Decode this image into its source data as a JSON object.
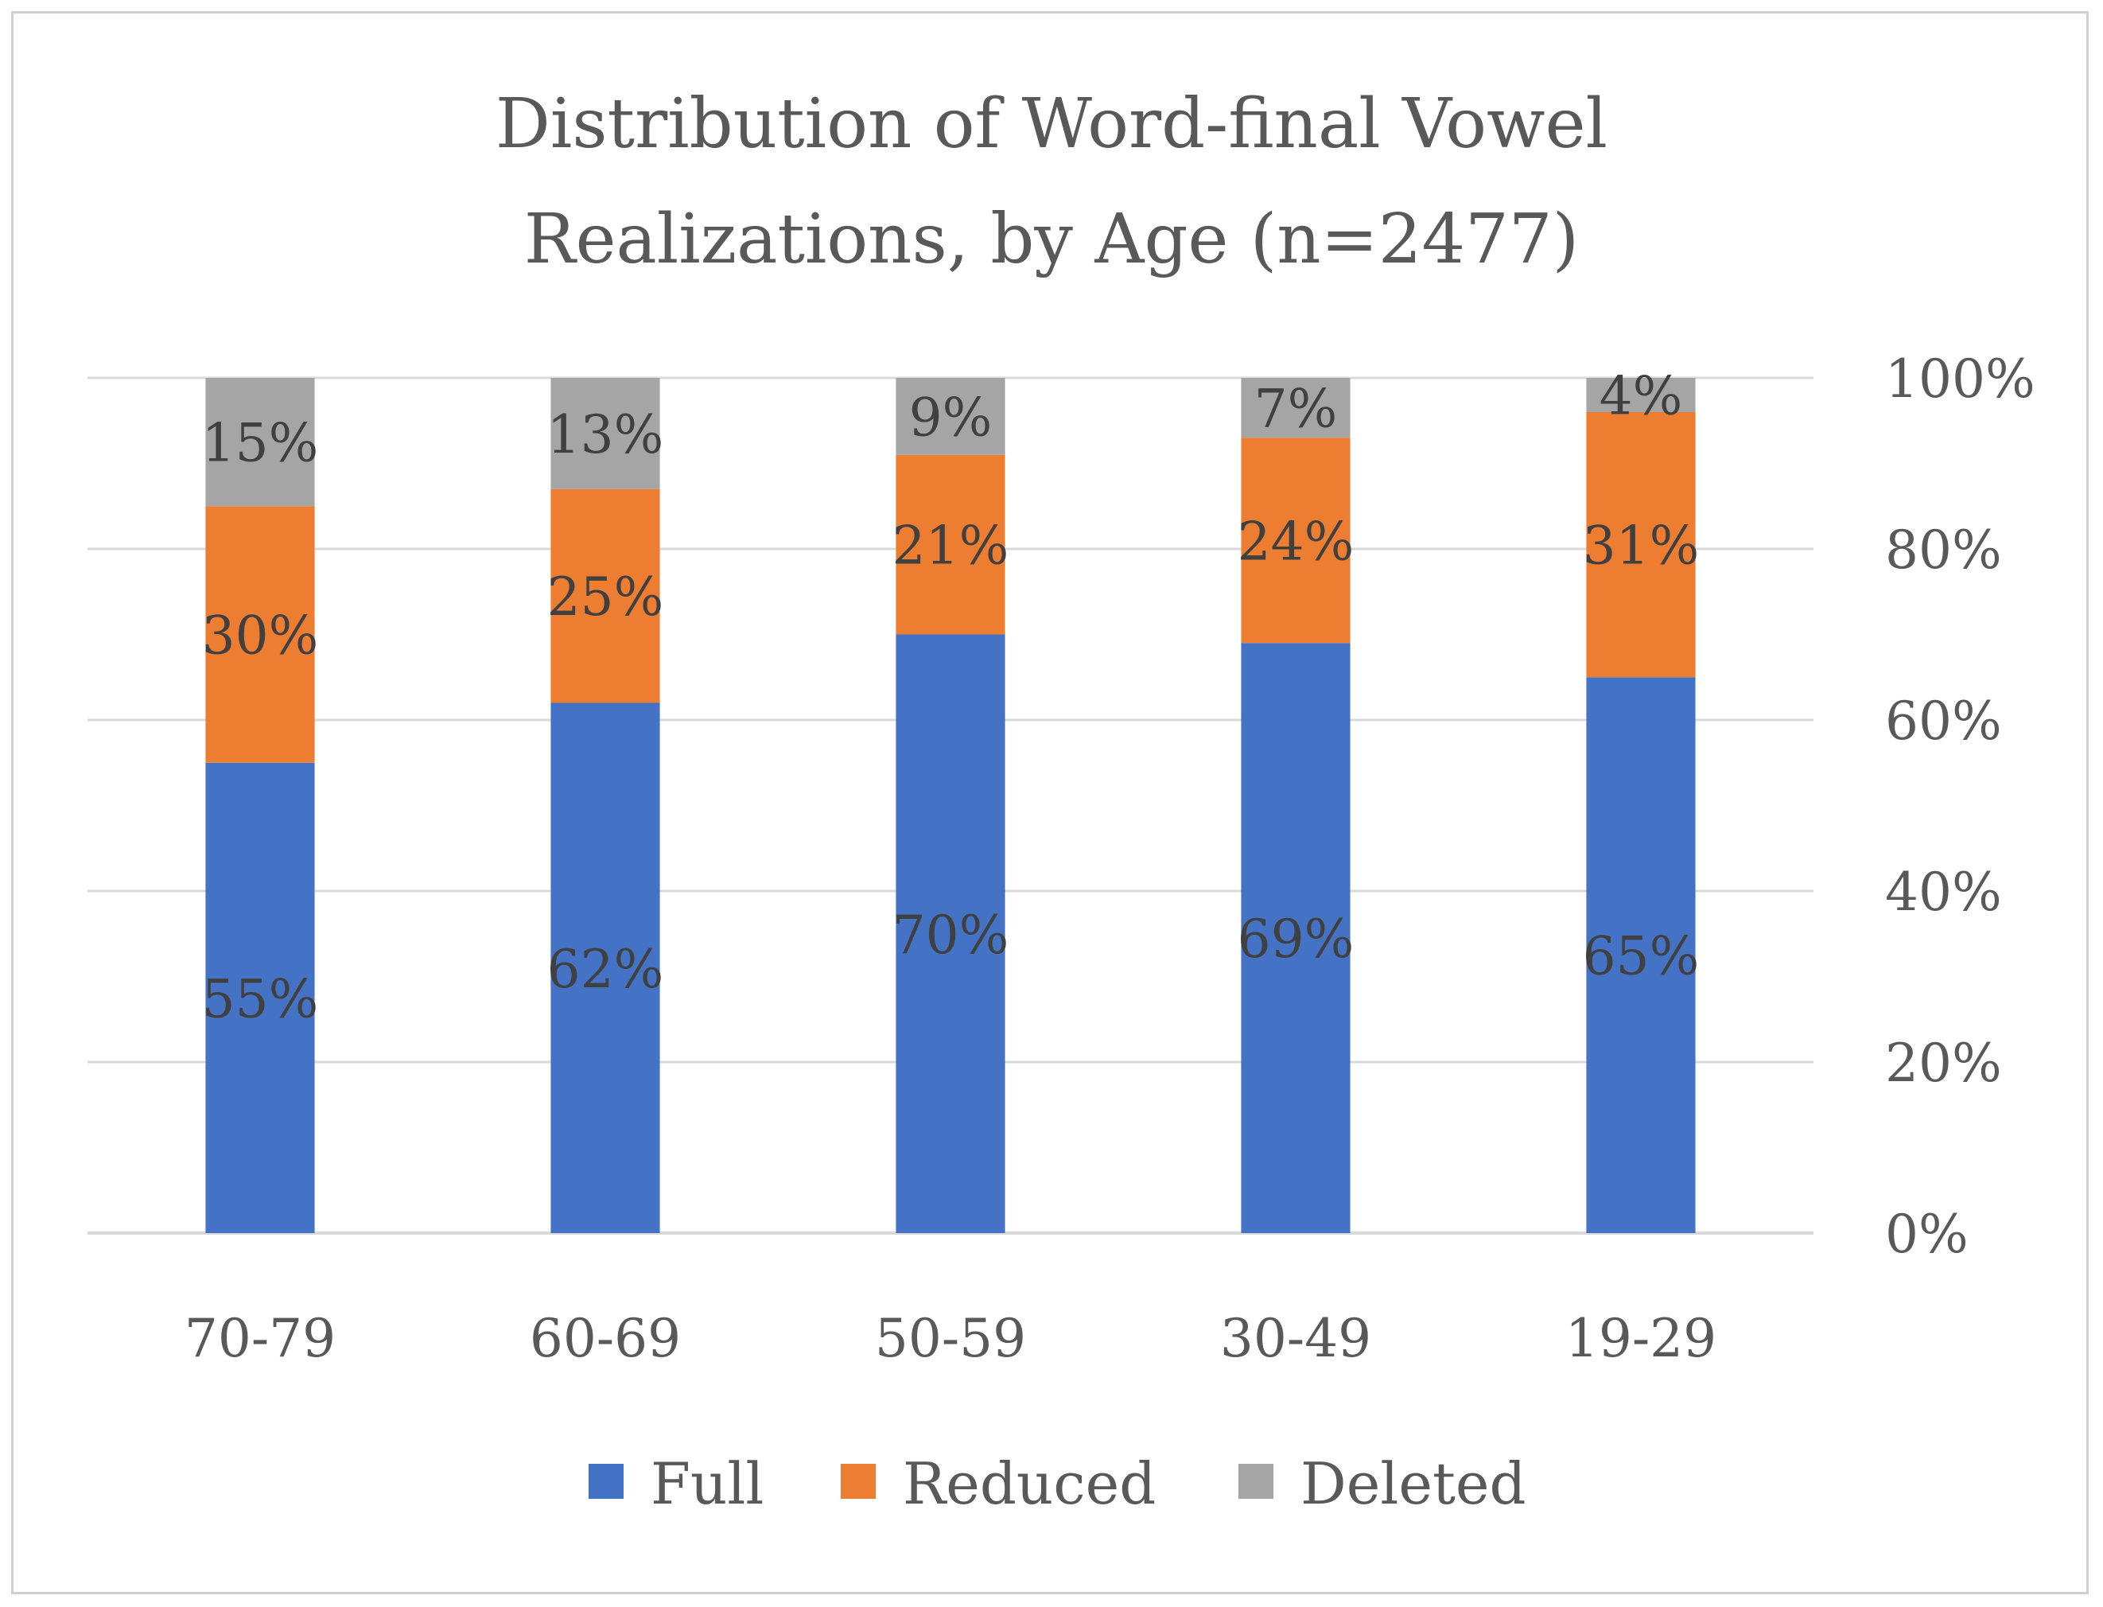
{
  "chart_data": {
    "type": "bar",
    "stacked": true,
    "title_lines": [
      "Distribution of Word-final Vowel",
      "Realizations, by Age (n=2477)"
    ],
    "categories": [
      "70-79",
      "60-69",
      "50-59",
      "30-49",
      "19-29"
    ],
    "series": [
      {
        "name": "Full",
        "color": "#4472C4",
        "values": [
          55,
          62,
          70,
          69,
          65
        ],
        "labels": [
          "55%",
          "62%",
          "70%",
          "69%",
          "65%"
        ]
      },
      {
        "name": "Reduced",
        "color": "#ED7D31",
        "values": [
          30,
          25,
          21,
          24,
          31
        ],
        "labels": [
          "30%",
          "25%",
          "21%",
          "24%",
          "31%"
        ]
      },
      {
        "name": "Deleted",
        "color": "#A5A5A5",
        "values": [
          15,
          13,
          9,
          7,
          4
        ],
        "labels": [
          "15%",
          "13%",
          "9%",
          "7%",
          "4%"
        ]
      }
    ],
    "y_ticks": [
      "0%",
      "20%",
      "40%",
      "60%",
      "80%",
      "100%"
    ],
    "y_tick_values": [
      0,
      20,
      40,
      60,
      80,
      100
    ],
    "ylim": [
      0,
      100
    ],
    "y_axis_side": "right",
    "grid": true,
    "legend_position": "bottom",
    "xlabel": "",
    "ylabel": ""
  }
}
